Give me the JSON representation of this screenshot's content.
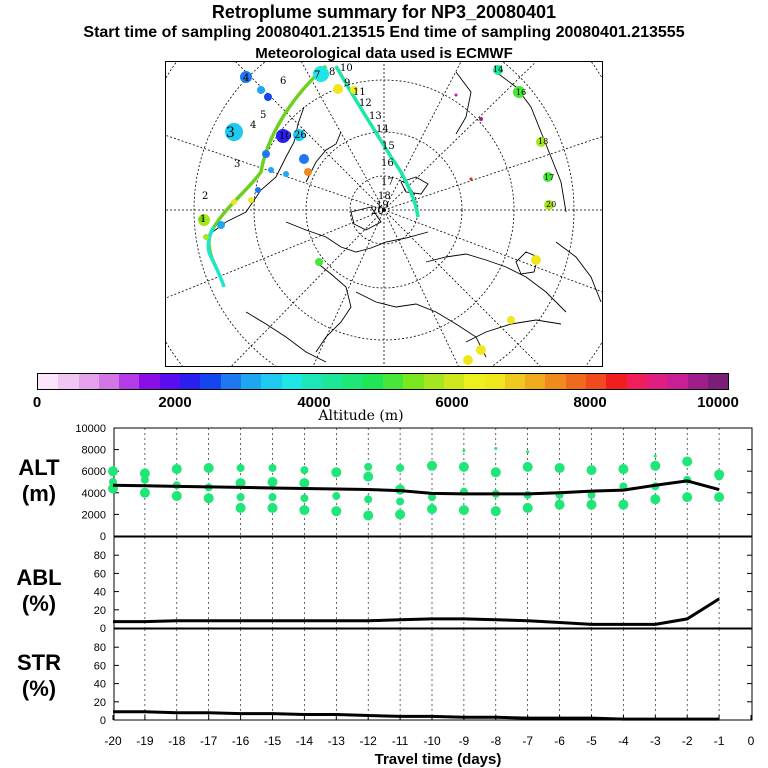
{
  "title": "Retroplume summary for NP3_20080401",
  "subtitle": "Start time of sampling 20080401.213515     End time of sampling 20080401.213555",
  "met_line": "Meteorological data used is ECMWF",
  "colorbar": {
    "ticks": [
      "0",
      "2000",
      "4000",
      "6000",
      "8000",
      "10000"
    ],
    "label": "Altitude (m)",
    "colors": [
      "#fbe6fb",
      "#f2c6f2",
      "#e6a1ec",
      "#d276e6",
      "#b43ce8",
      "#8a0ee6",
      "#5a0ef0",
      "#2a1ef0",
      "#1446f0",
      "#1f78f0",
      "#1ea6f0",
      "#1ecaf0",
      "#1ee6e6",
      "#1ee6bb",
      "#1ee699",
      "#1ee677",
      "#1ee655",
      "#46e63a",
      "#7ae61e",
      "#a6e61e",
      "#cee61e",
      "#eef01e",
      "#f0e61e",
      "#f0c81e",
      "#f0aa1e",
      "#f08a1e",
      "#f06a1e",
      "#f04a1e",
      "#f01e1e",
      "#f01e5a",
      "#e01e82",
      "#c81e96",
      "#a01e8c",
      "#7a1e78"
    ]
  },
  "map": {
    "path_labels": [
      "1",
      "2",
      "3",
      "4",
      "5",
      "6",
      "7",
      "8",
      "9",
      "10",
      "11",
      "12",
      "13",
      "14",
      "15",
      "16",
      "17",
      "18",
      "19",
      "20"
    ],
    "cluster_labels": [
      "1",
      "2",
      "3",
      "4",
      "4",
      "5",
      "6",
      "7",
      "8",
      "9",
      "10",
      "11",
      "12",
      "13",
      "14",
      "15",
      "16",
      "17",
      "18",
      "19",
      "20",
      "26"
    ]
  },
  "chart_data": [
    {
      "type": "scatter+line",
      "name": "ALT",
      "ylabel": "ALT\n(m)",
      "ylabel_top": "ALT",
      "ylabel_bottom": "(m)",
      "ylim": [
        0,
        10000
      ],
      "yticks": [
        "10000",
        "8000",
        "6000",
        "4000",
        "2000",
        "0"
      ],
      "x": [
        -20,
        -19,
        -18,
        -17,
        -16,
        -15,
        -14,
        -13,
        -12,
        -11,
        -10,
        -9,
        -8,
        -7,
        -6,
        -5,
        -4,
        -3,
        -2,
        -1
      ],
      "line_values": [
        4700,
        4650,
        4600,
        4550,
        4500,
        4450,
        4400,
        4350,
        4300,
        4200,
        3950,
        3900,
        3900,
        3900,
        4000,
        4150,
        4250,
        4700,
        5100,
        4300
      ],
      "scatter": [
        [
          4400,
          5000,
          6000
        ],
        [
          4000,
          5200,
          5800
        ],
        [
          3700,
          4700,
          6200
        ],
        [
          3500,
          4500,
          6300
        ],
        [
          2600,
          3600,
          4900,
          6300
        ],
        [
          2600,
          3600,
          5000,
          6300
        ],
        [
          2400,
          3500,
          4900,
          6100
        ],
        [
          2300,
          3700,
          5900
        ],
        [
          1900,
          3400,
          5500,
          6400
        ],
        [
          2000,
          3200,
          4300,
          6300
        ],
        [
          2500,
          3600,
          6500
        ],
        [
          2400,
          4100,
          6400,
          7900
        ],
        [
          2300,
          3900,
          5900,
          8100
        ],
        [
          2600,
          3800,
          6400,
          7800
        ],
        [
          2900,
          3800,
          6300
        ],
        [
          2900,
          3800,
          6100
        ],
        [
          2900,
          4600,
          6200
        ],
        [
          3400,
          4600,
          6500,
          7400
        ],
        [
          3600,
          5200,
          6900
        ],
        [
          3600,
          5500,
          5700
        ]
      ]
    },
    {
      "type": "line",
      "name": "ABL",
      "ylabel_top": "ABL",
      "ylabel_bottom": "(%)",
      "ylim": [
        0,
        100
      ],
      "yticks": [
        "80",
        "60",
        "40",
        "20",
        "0"
      ],
      "x": [
        -20,
        -19,
        -18,
        -17,
        -16,
        -15,
        -14,
        -13,
        -12,
        -11,
        -10,
        -9,
        -8,
        -7,
        -6,
        -5,
        -4,
        -3,
        -2,
        -1
      ],
      "values": [
        7,
        7,
        8,
        8,
        8,
        8,
        8,
        8,
        8,
        9,
        10,
        10,
        9,
        8,
        6,
        4,
        4,
        4,
        10,
        32
      ]
    },
    {
      "type": "line",
      "name": "STR",
      "ylabel_top": "STR",
      "ylabel_bottom": "(%)",
      "ylim": [
        0,
        100
      ],
      "yticks": [
        "80",
        "60",
        "40",
        "20",
        "0"
      ],
      "xticks": [
        "-20",
        "-19",
        "-18",
        "-17",
        "-16",
        "-15",
        "-14",
        "-13",
        "-12",
        "-11",
        "-10",
        "-9",
        "-8",
        "-7",
        "-6",
        "-5",
        "-4",
        "-3",
        "-2",
        "-1",
        "0"
      ],
      "xlabel": "Travel time (days)",
      "x": [
        -20,
        -19,
        -18,
        -17,
        -16,
        -15,
        -14,
        -13,
        -12,
        -11,
        -10,
        -9,
        -8,
        -7,
        -6,
        -5,
        -4,
        -3,
        -2,
        -1
      ],
      "values": [
        9,
        9,
        8,
        8,
        7,
        7,
        6,
        6,
        5,
        4,
        4,
        3,
        3,
        2,
        2,
        2,
        1,
        1,
        1,
        1
      ]
    }
  ]
}
